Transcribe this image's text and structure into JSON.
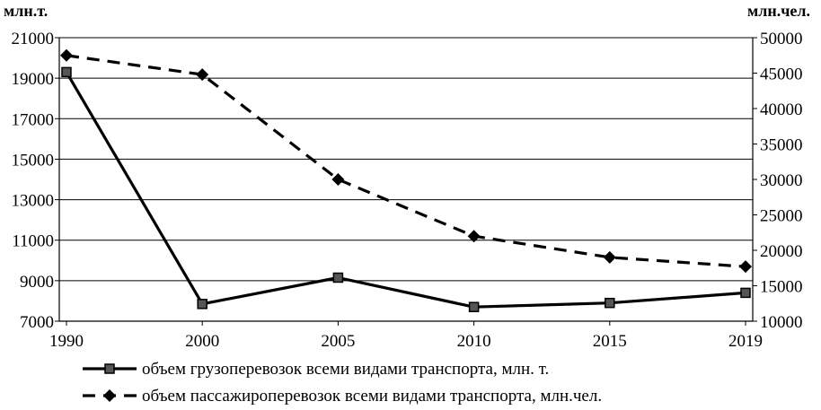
{
  "chart_data": {
    "type": "line",
    "x": [
      "1990",
      "2000",
      "2005",
      "2010",
      "2015",
      "2019"
    ],
    "left_axis": {
      "unit": "млн.т.",
      "ylim": [
        7000,
        21000
      ],
      "ticks": [
        "7000",
        "9000",
        "11000",
        "13000",
        "15000",
        "17000",
        "19000",
        "21000"
      ]
    },
    "right_axis": {
      "unit": "млн.чел.",
      "ylim": [
        10000,
        50000
      ],
      "ticks": [
        "10000",
        "15000",
        "20000",
        "25000",
        "30000",
        "35000",
        "40000",
        "45000",
        "50000"
      ]
    },
    "grid": true,
    "legend_position": "bottom",
    "series": [
      {
        "name": "объем грузоперевозок всеми видами транспорта, млн. т.",
        "axis": "left",
        "style": "solid",
        "marker": "square",
        "values": [
          19300,
          7850,
          9150,
          7700,
          7900,
          8400
        ]
      },
      {
        "name": "объем пассажироперевозок всеми видами транспорта, млн.чел.",
        "axis": "right",
        "style": "dashed",
        "marker": "diamond",
        "values": [
          47500,
          44800,
          30000,
          22000,
          19000,
          17700
        ]
      }
    ]
  }
}
